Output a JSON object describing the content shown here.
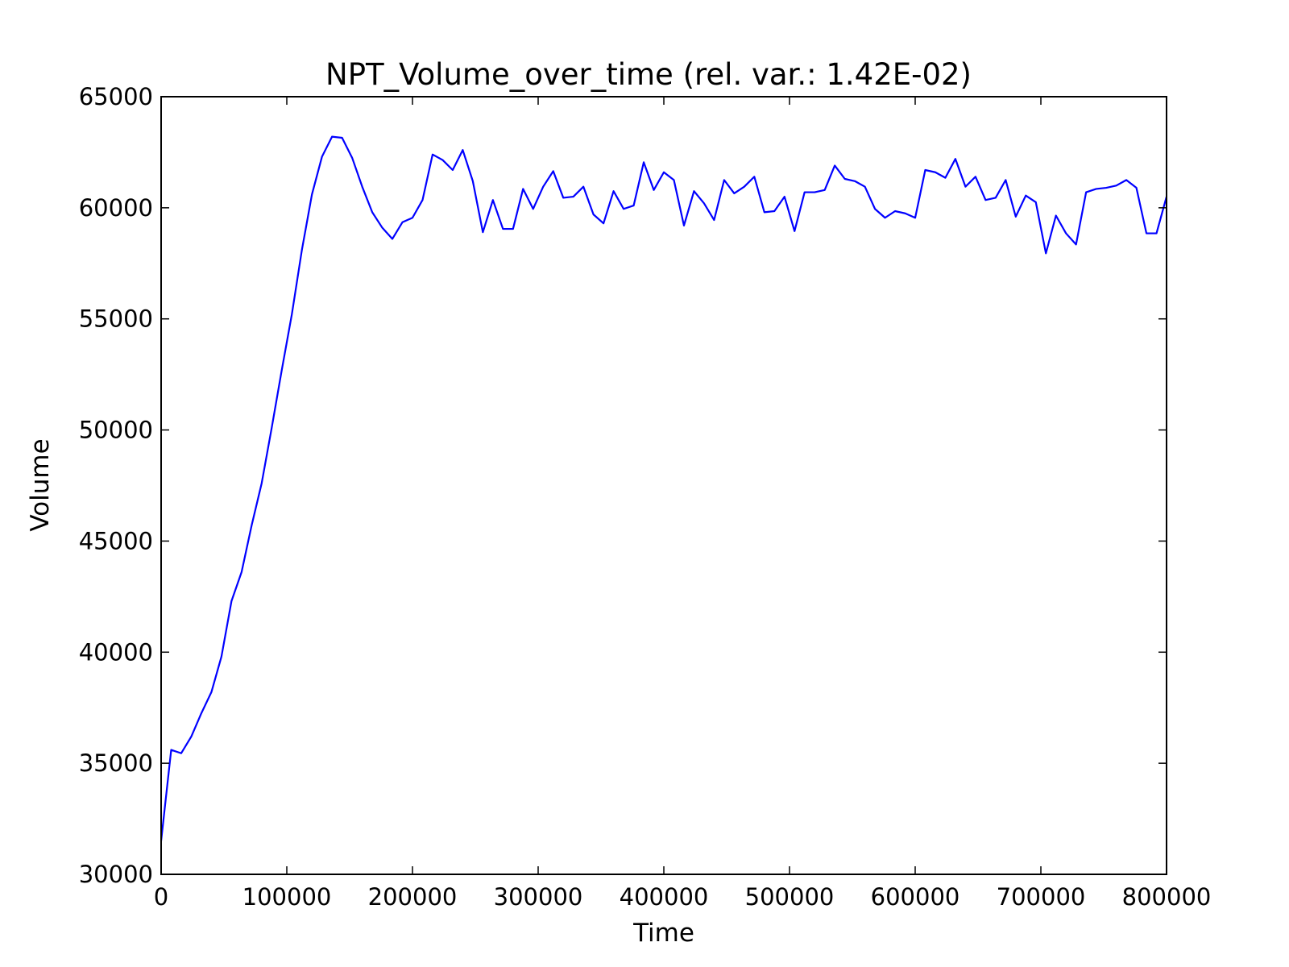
{
  "chart_data": {
    "type": "line",
    "title": "NPT_Volume_over_time (rel. var.: 1.42E-02)",
    "xlabel": "Time",
    "ylabel": "Volume",
    "xlim": [
      0,
      800000
    ],
    "ylim": [
      30000,
      65000
    ],
    "x_ticks": [
      0,
      100000,
      200000,
      300000,
      400000,
      500000,
      600000,
      700000,
      800000
    ],
    "y_ticks": [
      30000,
      35000,
      40000,
      45000,
      50000,
      55000,
      60000,
      65000
    ],
    "x_tick_labels": [
      "0",
      "100000",
      "200000",
      "300000",
      "400000",
      "500000",
      "600000",
      "700000",
      "800000"
    ],
    "y_tick_labels": [
      "30000",
      "35000",
      "40000",
      "45000",
      "50000",
      "55000",
      "60000",
      "65000"
    ],
    "grid": false,
    "legend": false,
    "series": [
      {
        "color": "#0000ff",
        "x": [
          0,
          8000,
          16000,
          24000,
          32000,
          40000,
          48000,
          56000,
          64000,
          72000,
          80000,
          88000,
          96000,
          104000,
          112000,
          120000,
          128000,
          136000,
          144000,
          152000,
          160000,
          168000,
          176000,
          184000,
          192000,
          200000,
          208000,
          216000,
          224000,
          232000,
          240000,
          248000,
          256000,
          264000,
          272000,
          280000,
          288000,
          296000,
          304000,
          312000,
          320000,
          328000,
          336000,
          344000,
          352000,
          360000,
          368000,
          376000,
          384000,
          392000,
          400000,
          408000,
          416000,
          424000,
          432000,
          440000,
          448000,
          456000,
          464000,
          472000,
          480000,
          488000,
          496000,
          504000,
          512000,
          520000,
          528000,
          536000,
          544000,
          552000,
          560000,
          568000,
          576000,
          584000,
          592000,
          600000,
          608000,
          616000,
          624000,
          632000,
          640000,
          648000,
          656000,
          664000,
          672000,
          680000,
          688000,
          696000,
          704000,
          712000,
          720000,
          728000,
          736000,
          744000,
          752000,
          760000,
          768000,
          776000,
          784000,
          792000,
          800000
        ],
        "y": [
          31500,
          35600,
          35450,
          36200,
          37250,
          38200,
          39800,
          42300,
          43600,
          45700,
          47600,
          50100,
          52700,
          55200,
          58100,
          60600,
          62300,
          63200,
          63150,
          62250,
          60950,
          59800,
          59100,
          58600,
          59350,
          59550,
          60350,
          62400,
          62150,
          61700,
          62600,
          61200,
          58900,
          60350,
          59050,
          59050,
          60850,
          59950,
          60950,
          61650,
          60450,
          60500,
          60950,
          59700,
          59300,
          60750,
          59950,
          60100,
          62050,
          60800,
          61600,
          61250,
          59200,
          60750,
          60200,
          59450,
          61250,
          60650,
          60950,
          61400,
          59800,
          59850,
          60500,
          58950,
          60700,
          60700,
          60800,
          61900,
          61300,
          61200,
          60950,
          59950,
          59550,
          59850,
          59750,
          59550,
          61700,
          61600,
          61350,
          62200,
          60950,
          61400,
          60350,
          60450,
          61250,
          59600,
          60550,
          60250,
          57950,
          59650,
          58850,
          58350,
          60700,
          60850,
          60900,
          61000,
          61250,
          60900,
          58850,
          58850,
          60500
        ]
      }
    ]
  }
}
